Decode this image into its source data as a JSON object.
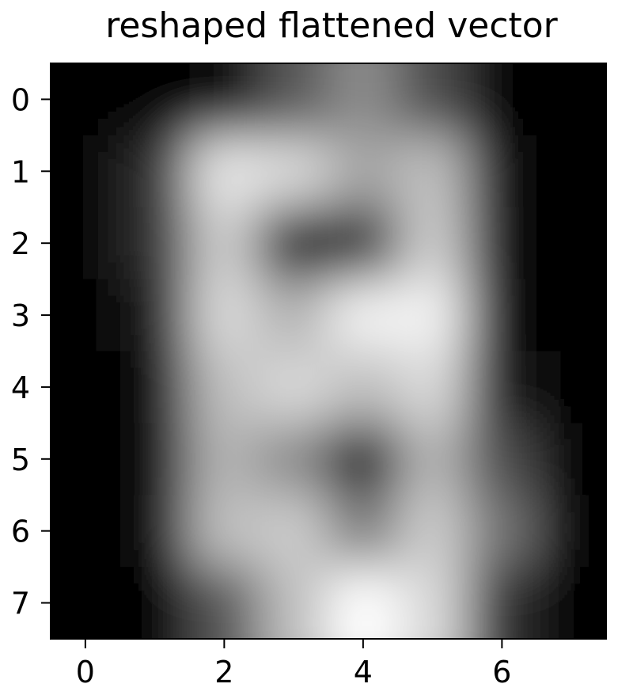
{
  "chart_data": {
    "type": "heatmap",
    "title": "reshaped flattened vector",
    "xlabel": "",
    "ylabel": "",
    "colormap": "gray",
    "interpolation": "smooth",
    "x_ticks": [
      0,
      2,
      4,
      6
    ],
    "y_ticks": [
      0,
      1,
      2,
      3,
      4,
      5,
      6,
      7
    ],
    "xlim": [
      -0.5,
      7.5
    ],
    "ylim": [
      7.5,
      -0.5
    ],
    "grid": false,
    "rows": [
      [
        0.0,
        0.0,
        0.05,
        0.35,
        0.55,
        0.3,
        0.0,
        0.0
      ],
      [
        0.0,
        0.2,
        0.9,
        0.85,
        0.65,
        0.75,
        0.05,
        0.0
      ],
      [
        0.0,
        0.2,
        0.8,
        0.1,
        0.2,
        0.8,
        0.05,
        0.0
      ],
      [
        0.0,
        0.1,
        0.85,
        0.7,
        0.95,
        0.95,
        0.05,
        0.0
      ],
      [
        0.0,
        0.05,
        0.75,
        0.85,
        0.75,
        0.85,
        0.1,
        0.0
      ],
      [
        0.0,
        0.05,
        0.7,
        0.55,
        0.1,
        0.7,
        0.3,
        0.0
      ],
      [
        0.0,
        0.05,
        0.75,
        0.8,
        0.5,
        0.8,
        0.45,
        0.0
      ],
      [
        0.0,
        0.0,
        0.35,
        0.75,
        1.0,
        0.85,
        0.2,
        0.0
      ]
    ]
  }
}
